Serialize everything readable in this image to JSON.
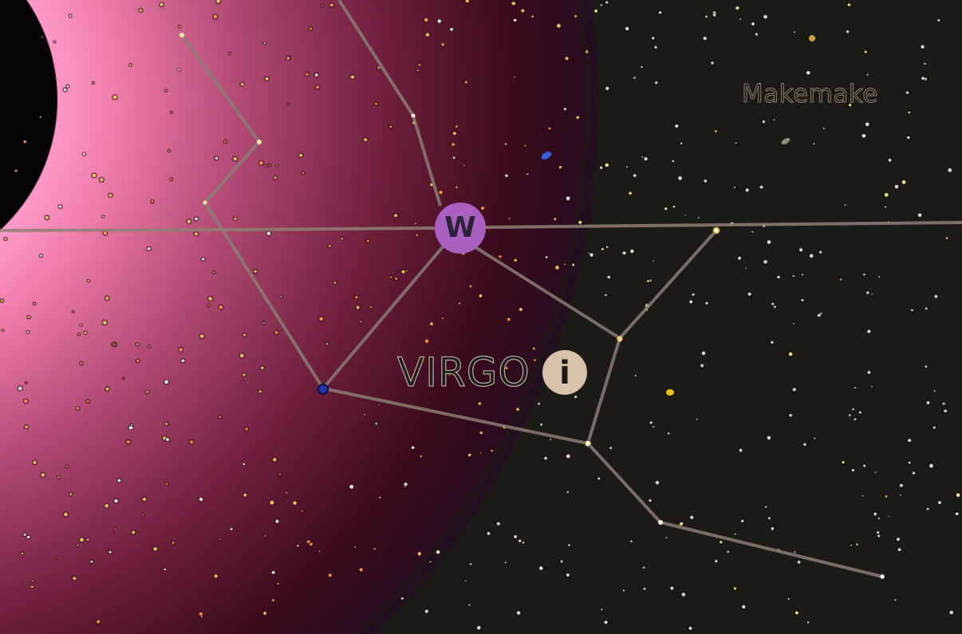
{
  "sky_view": {
    "planet_label": "Makemake",
    "constellation_label": "VIRGO",
    "compass_marker": {
      "label": "W",
      "color": "#a960c0"
    },
    "info_button": {
      "icon": "info-icon",
      "glyph": "i",
      "color": "#d8c2aa"
    },
    "colors": {
      "sky": "#1c1a16",
      "sun_glow": "#ff8fc0",
      "constellation_lines": "#8a7d73",
      "horizon_line": "#8a7d73"
    }
  }
}
